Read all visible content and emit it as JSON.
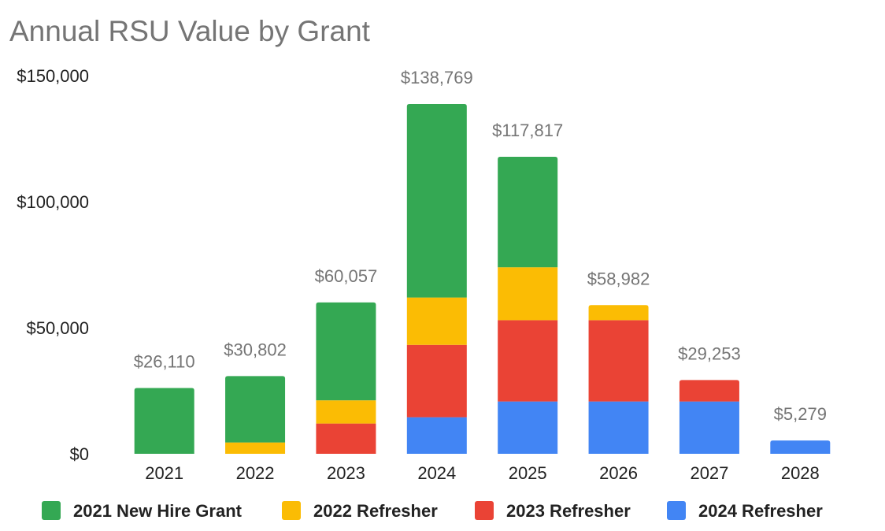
{
  "chart_data": {
    "type": "bar",
    "stacked": true,
    "title": "Annual RSU Value by Grant",
    "xlabel": "",
    "ylabel": "",
    "ylim": [
      0,
      150000
    ],
    "yticks": [
      {
        "value": 0,
        "label": "$0"
      },
      {
        "value": 50000,
        "label": "$50,000"
      },
      {
        "value": 100000,
        "label": "$100,000"
      },
      {
        "value": 150000,
        "label": "$150,000"
      }
    ],
    "grid": false,
    "legend_position": "bottom",
    "categories": [
      "2021",
      "2022",
      "2023",
      "2024",
      "2025",
      "2026",
      "2027",
      "2028"
    ],
    "series": [
      {
        "name": "2024 Refresher",
        "color": "#4285f4",
        "values": [
          0,
          0,
          0,
          14500,
          20750,
          20750,
          20750,
          5279
        ]
      },
      {
        "name": "2023 Refresher",
        "color": "#ea4335",
        "values": [
          0,
          0,
          12000,
          28700,
          32250,
          32250,
          8503,
          0
        ]
      },
      {
        "name": "2022 Refresher",
        "color": "#fbbc04",
        "values": [
          0,
          4500,
          9200,
          18800,
          21000,
          5982,
          0,
          0
        ]
      },
      {
        "name": "2021 New Hire Grant",
        "color": "#34a853",
        "values": [
          26110,
          26302,
          38857,
          76769,
          43817,
          0,
          0,
          0
        ]
      }
    ],
    "legend_order": [
      "2021 New Hire Grant",
      "2022 Refresher",
      "2023 Refresher",
      "2024 Refresher"
    ],
    "totals": [
      26110,
      30802,
      60057,
      138769,
      117817,
      58982,
      29253,
      5279
    ],
    "total_labels": [
      "$26,110",
      "$30,802",
      "$60,057",
      "$138,769",
      "$117,817",
      "$58,982",
      "$29,253",
      "$5,279"
    ]
  }
}
